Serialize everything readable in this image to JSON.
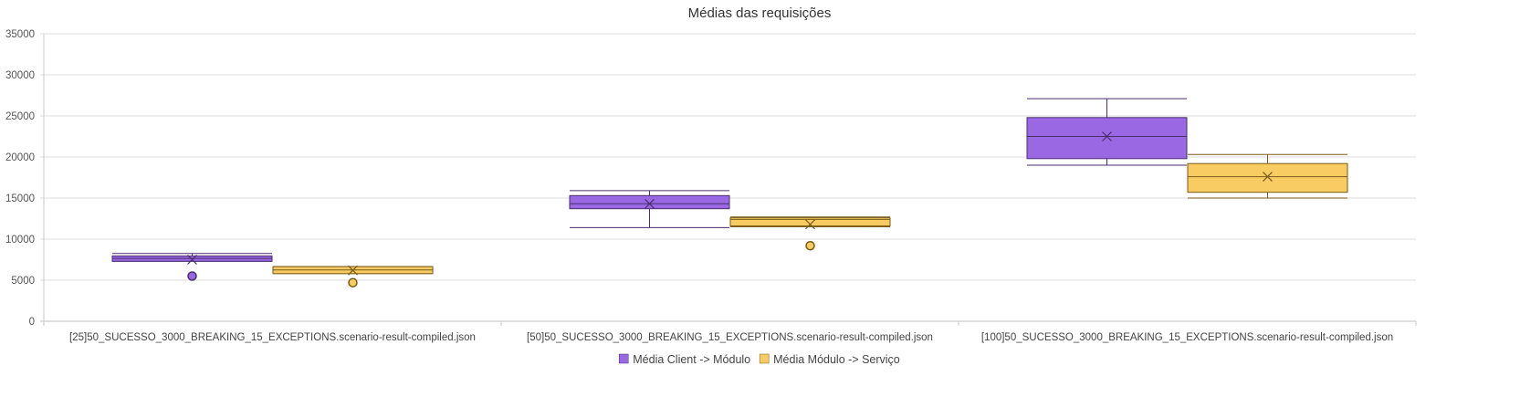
{
  "chart_data": {
    "type": "boxplot",
    "title": "Médias das requisições",
    "xlabel": "",
    "ylabel": "",
    "ylim": [
      0,
      35000
    ],
    "yticks": [
      0,
      5000,
      10000,
      15000,
      20000,
      25000,
      30000,
      35000
    ],
    "grid": true,
    "legend_position": "bottom",
    "categories": [
      "[25]50_SUCESSO_3000_BREAKING_15_EXCEPTIONS.scenario-result-compiled.json",
      "[50]50_SUCESSO_3000_BREAKING_15_EXCEPTIONS.scenario-result-compiled.json",
      "[100]50_SUCESSO_3000_BREAKING_15_EXCEPTIONS.scenario-result-compiled.json"
    ],
    "series": [
      {
        "name": "Média Client -> Módulo",
        "color": "#9b68e3",
        "stroke": "#4a2d6e",
        "boxes": [
          {
            "min": 7300,
            "q1": 7300,
            "median": 7650,
            "q3": 7950,
            "max": 8250,
            "mean": 7500,
            "outliers": [
              5500
            ]
          },
          {
            "min": 11400,
            "q1": 13700,
            "median": 14300,
            "q3": 15300,
            "max": 15900,
            "mean": 14300,
            "outliers": []
          },
          {
            "min": 19000,
            "q1": 19800,
            "median": 22500,
            "q3": 24800,
            "max": 27100,
            "mean": 22500,
            "outliers": []
          }
        ]
      },
      {
        "name": "Média Módulo -> Serviço",
        "color": "#f8cb63",
        "stroke": "#7a5b16",
        "boxes": [
          {
            "min": 5800,
            "q1": 5800,
            "median": 6250,
            "q3": 6650,
            "max": 6650,
            "mean": 6200,
            "outliers": [
              4700
            ]
          },
          {
            "min": 11500,
            "q1": 11600,
            "median": 12400,
            "q3": 12600,
            "max": 12700,
            "mean": 11800,
            "outliers": [
              9200
            ]
          },
          {
            "min": 15000,
            "q1": 15700,
            "median": 17600,
            "q3": 19200,
            "max": 20300,
            "mean": 17600,
            "outliers": []
          }
        ]
      }
    ]
  }
}
